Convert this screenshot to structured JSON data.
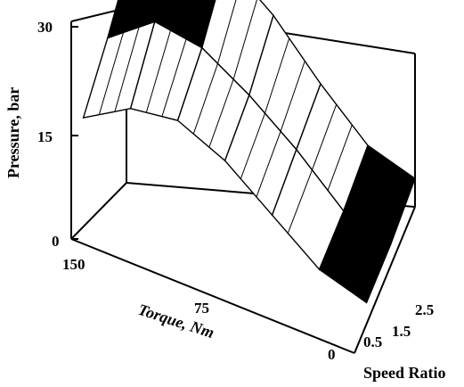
{
  "chart_data": {
    "type": "surface3d",
    "title": "",
    "zlabel": "Pressure, bar",
    "xlabel": "Torque, Nm",
    "ylabel": "Speed Ratio",
    "zticks": [
      "0",
      "15",
      "30"
    ],
    "xticks": [
      "150",
      "75",
      "0"
    ],
    "yticks": [
      "0.5",
      "1.5",
      "2.5"
    ],
    "zlim": [
      0,
      30
    ],
    "xlim": [
      0,
      150
    ],
    "ylim": [
      0,
      2.5
    ],
    "torque": [
      150,
      125,
      100,
      75,
      50,
      25,
      0
    ],
    "speed_ratio": [
      0.5,
      1.5,
      2.5
    ],
    "pressure": [
      [
        13,
        16,
        20
      ],
      [
        17,
        21,
        27
      ],
      [
        18,
        20,
        24
      ],
      [
        15,
        16,
        19
      ],
      [
        10,
        11,
        12
      ],
      [
        5,
        5,
        6
      ],
      [
        3,
        3,
        4
      ]
    ]
  }
}
